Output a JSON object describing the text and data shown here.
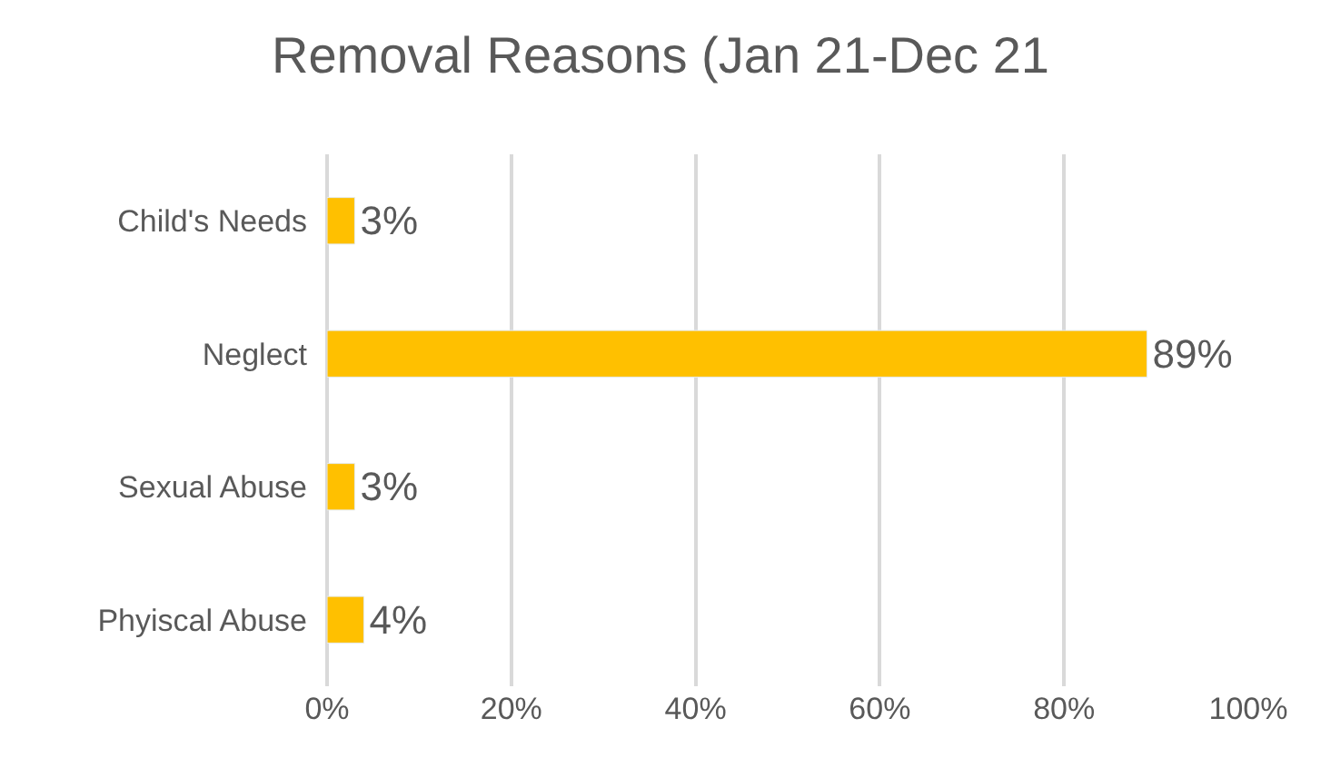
{
  "chart_data": {
    "type": "bar",
    "orientation": "horizontal",
    "title": "Removal Reasons (Jan 21-Dec 21",
    "categories": [
      "Child's Needs",
      "Neglect",
      "Sexual Abuse",
      "Phyiscal Abuse"
    ],
    "values": [
      3,
      89,
      3,
      4
    ],
    "value_labels": [
      "3%",
      "89%",
      "3%",
      "4%"
    ],
    "color": "#ffc000",
    "xlim": [
      0,
      100
    ],
    "xticks": [
      {
        "value": 0,
        "label": "0%"
      },
      {
        "value": 20,
        "label": "20%"
      },
      {
        "value": 40,
        "label": "40%"
      },
      {
        "value": 60,
        "label": "60%"
      },
      {
        "value": 80,
        "label": "80%"
      },
      {
        "value": 100,
        "label": "100%"
      }
    ],
    "grid": "x"
  }
}
